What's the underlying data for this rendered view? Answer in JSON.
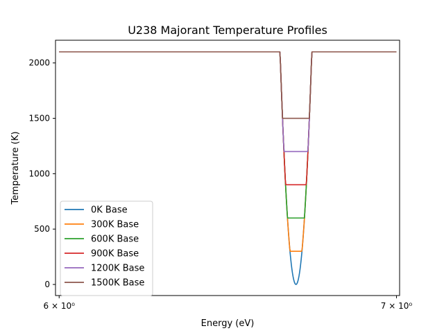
{
  "chart_data": {
    "type": "line",
    "title": "U238 Majorant Temperature Profiles",
    "xlabel": "Energy (eV)",
    "ylabel": "Temperature (K)",
    "xscale": "log",
    "xlim": [
      5.99,
      7.01
    ],
    "ylim": [
      -100,
      2205
    ],
    "xticks": [
      {
        "value": 6,
        "label": "6 × 10⁰"
      },
      {
        "value": 7,
        "label": "7 × 10⁰"
      }
    ],
    "yticks": [
      0,
      500,
      1000,
      1500,
      2000
    ],
    "legend": "lower-left",
    "grid": false,
    "curve": {
      "e_left": 6.5858,
      "e_right": 6.7877,
      "t_max": 2100,
      "e_min": 6.6858,
      "half_width": 0.0485,
      "t_min": 0
    },
    "series": [
      {
        "name": "0K Base",
        "base": 0,
        "color": "#1f77b4"
      },
      {
        "name": "300K Base",
        "base": 300,
        "color": "#ff7f0e"
      },
      {
        "name": "600K Base",
        "base": 600,
        "color": "#2ca02c"
      },
      {
        "name": "900K Base",
        "base": 900,
        "color": "#d62728"
      },
      {
        "name": "1200K Base",
        "base": 1200,
        "color": "#9467bd"
      },
      {
        "name": "1500K Base",
        "base": 1500,
        "color": "#8c564b"
      }
    ],
    "x": [
      6.0,
      6.585,
      6.6,
      6.62,
      6.64,
      6.66,
      6.68,
      6.7,
      6.72,
      6.74,
      6.76,
      6.77,
      6.787,
      6.8,
      7.0
    ]
  }
}
